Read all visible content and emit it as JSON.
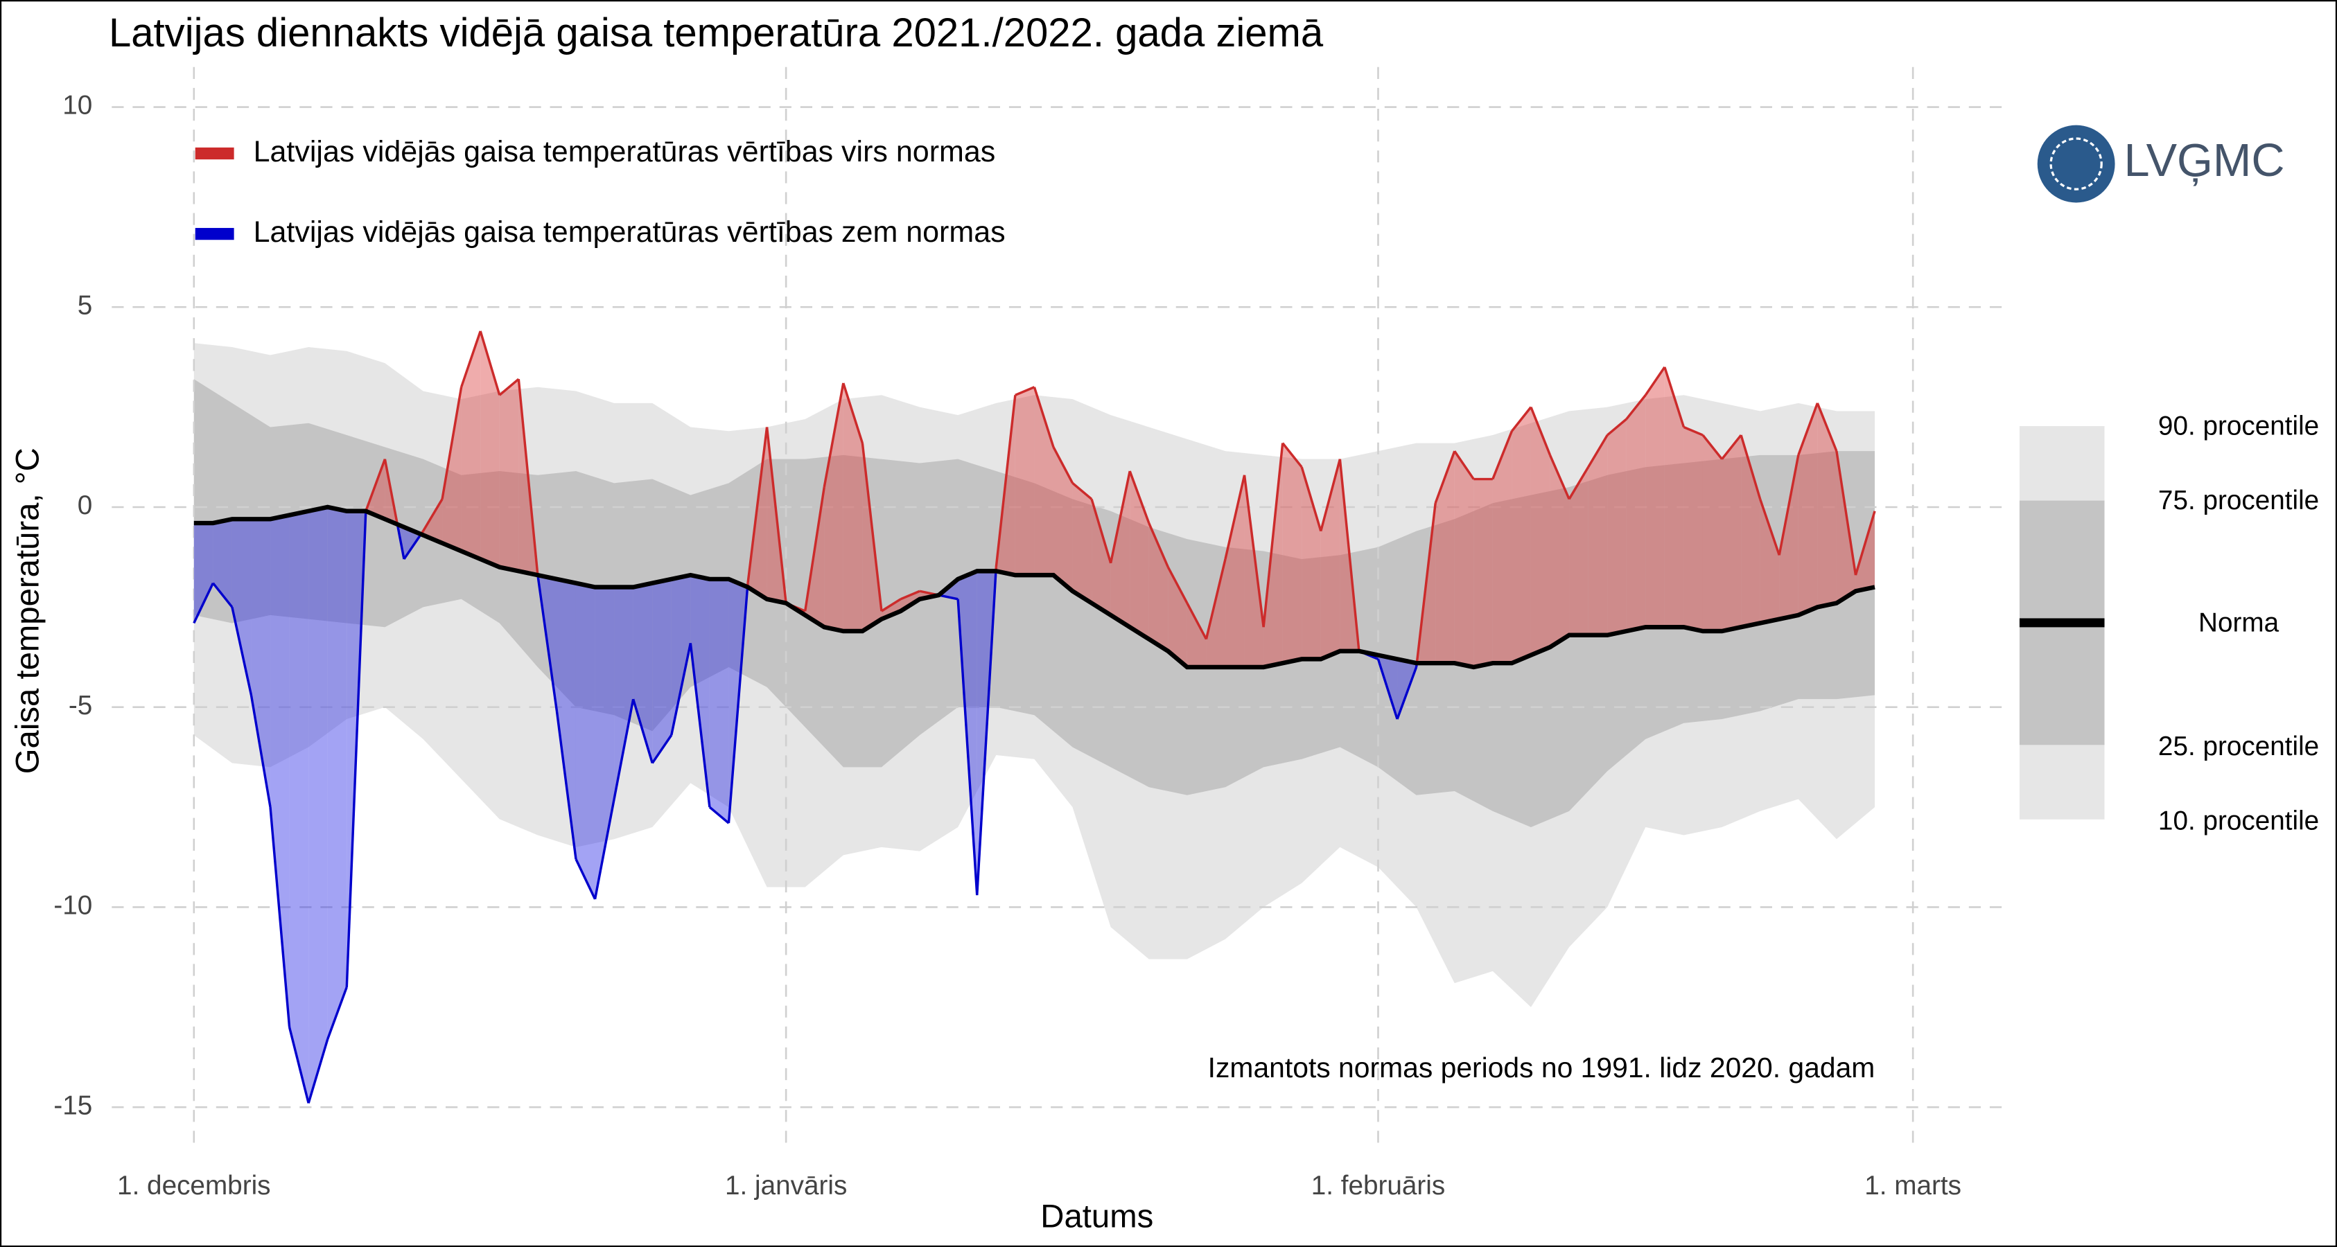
{
  "chart_data": {
    "type": "line",
    "title": "Latvijas diennakts vidējā gaisa temperatūra 2021./2022. gada ziemā",
    "ylabel": "Gaisa temperatūra, °C",
    "xlabel": "Datums",
    "annotation": "Izmantots normas periods no 1991. lidz 2020. gadam",
    "logo": "LVĢMC",
    "xlim": [
      -4.3,
      94.8
    ],
    "ylim": [
      -16,
      11
    ],
    "xticks": [
      {
        "value": 0,
        "label": "1. decembris"
      },
      {
        "value": 31,
        "label": "1. janvāris"
      },
      {
        "value": 62,
        "label": "1. februāris"
      },
      {
        "value": 90,
        "label": "1. marts"
      }
    ],
    "yticks": [
      -15,
      -10,
      -5,
      0,
      5,
      10
    ],
    "grid": true,
    "legend": [
      {
        "name": "Latvijas vidējās gaisa temperatūras vērtības virs normas",
        "color": "#cc2b2b"
      },
      {
        "name": "Latvijas vidējās gaisa temperatūras vērtības zem normas",
        "color": "#0000cc"
      }
    ],
    "x": [
      0,
      1,
      2,
      3,
      4,
      5,
      6,
      7,
      8,
      9,
      10,
      11,
      12,
      13,
      14,
      15,
      16,
      17,
      18,
      19,
      20,
      21,
      22,
      23,
      24,
      25,
      26,
      27,
      28,
      29,
      30,
      31,
      32,
      33,
      34,
      35,
      36,
      37,
      38,
      39,
      40,
      41,
      42,
      43,
      44,
      45,
      46,
      47,
      48,
      49,
      50,
      51,
      52,
      53,
      54,
      55,
      56,
      57,
      58,
      59,
      60,
      61,
      62,
      63,
      64,
      65,
      66,
      67,
      68,
      69,
      70,
      71,
      72,
      73,
      74,
      75,
      76,
      77,
      78,
      79,
      80,
      81,
      82,
      83,
      84,
      85,
      86,
      87,
      88
    ],
    "temperature": [
      -2.9,
      -1.9,
      -2.5,
      -4.7,
      -7.5,
      -13.0,
      -14.9,
      -13.3,
      -12.0,
      -0.1,
      1.2,
      -1.3,
      -0.6,
      0.2,
      3.0,
      4.4,
      2.8,
      3.2,
      -1.7,
      -5.1,
      -8.8,
      -9.8,
      -7.3,
      -4.8,
      -6.4,
      -5.7,
      -3.4,
      -7.5,
      -7.9,
      -1.9,
      2.0,
      -2.4,
      -2.6,
      0.5,
      3.1,
      1.6,
      -2.6,
      -2.3,
      -2.1,
      -2.2,
      -2.3,
      -9.7,
      -1.5,
      2.8,
      3.0,
      1.5,
      0.6,
      0.2,
      -1.4,
      0.9,
      -0.4,
      -1.5,
      -2.4,
      -3.3,
      -1.3,
      0.8,
      -3.0,
      1.6,
      1.0,
      -0.6,
      1.2,
      -3.6,
      -3.8,
      -5.3,
      -4.0,
      0.1,
      1.4,
      0.7,
      0.7,
      1.9,
      2.5,
      1.3,
      0.2,
      1.0,
      1.8,
      2.2,
      2.8,
      3.5,
      2.0,
      1.8,
      1.2,
      1.8,
      0.2,
      -1.2,
      1.3,
      2.6,
      1.4,
      -1.7,
      -0.1
    ],
    "norm": {
      "name": "Norma",
      "color": "#000000",
      "values": [
        -0.4,
        -0.4,
        -0.3,
        -0.3,
        -0.3,
        -0.2,
        -0.1,
        0.0,
        -0.1,
        -0.1,
        -0.3,
        -0.5,
        -0.7,
        -0.9,
        -1.1,
        -1.3,
        -1.5,
        -1.6,
        -1.7,
        -1.8,
        -1.9,
        -2.0,
        -2.0,
        -2.0,
        -1.9,
        -1.8,
        -1.7,
        -1.8,
        -1.8,
        -2.0,
        -2.3,
        -2.4,
        -2.7,
        -3.0,
        -3.1,
        -3.1,
        -2.8,
        -2.6,
        -2.3,
        -2.2,
        -1.8,
        -1.6,
        -1.6,
        -1.7,
        -1.7,
        -1.7,
        -2.1,
        -2.4,
        -2.7,
        -3.0,
        -3.3,
        -3.6,
        -4.0,
        -4.0,
        -4.0,
        -4.0,
        -4.0,
        -3.9,
        -3.8,
        -3.8,
        -3.6,
        -3.6,
        -3.7,
        -3.8,
        -3.9,
        -3.9,
        -3.9,
        -4.0,
        -3.9,
        -3.9,
        -3.7,
        -3.5,
        -3.2,
        -3.2,
        -3.2,
        -3.1,
        -3.0,
        -3.0,
        -3.0,
        -3.1,
        -3.1,
        -3.0,
        -2.9,
        -2.8,
        -2.7,
        -2.5,
        -2.4,
        -2.1,
        -2.0
      ]
    },
    "bands": {
      "x": [
        0,
        2,
        4,
        6,
        8,
        10,
        12,
        14,
        16,
        18,
        20,
        22,
        24,
        26,
        28,
        30,
        32,
        34,
        36,
        38,
        40,
        42,
        44,
        46,
        48,
        50,
        52,
        54,
        56,
        58,
        60,
        62,
        64,
        66,
        68,
        70,
        72,
        74,
        76,
        78,
        80,
        82,
        84,
        86,
        88
      ],
      "p90": [
        4.1,
        4.0,
        3.8,
        4.0,
        3.9,
        3.6,
        2.9,
        2.7,
        2.9,
        3.0,
        2.9,
        2.6,
        2.6,
        2.0,
        1.9,
        2.0,
        2.2,
        2.7,
        2.8,
        2.5,
        2.3,
        2.6,
        2.8,
        2.7,
        2.3,
        2.0,
        1.7,
        1.4,
        1.3,
        1.2,
        1.2,
        1.4,
        1.6,
        1.6,
        1.8,
        2.1,
        2.4,
        2.5,
        2.7,
        2.8,
        2.6,
        2.4,
        2.6,
        2.4,
        2.4
      ],
      "p75": [
        3.2,
        2.6,
        2.0,
        2.1,
        1.8,
        1.5,
        1.2,
        0.8,
        0.9,
        0.8,
        0.9,
        0.6,
        0.7,
        0.3,
        0.6,
        1.2,
        1.2,
        1.3,
        1.2,
        1.1,
        1.2,
        0.9,
        0.6,
        0.2,
        -0.1,
        -0.5,
        -0.8,
        -1.0,
        -1.1,
        -1.3,
        -1.2,
        -1.0,
        -0.6,
        -0.3,
        0.1,
        0.3,
        0.5,
        0.8,
        1.0,
        1.1,
        1.2,
        1.3,
        1.3,
        1.4,
        1.4
      ],
      "p25": [
        -2.7,
        -2.9,
        -2.7,
        -2.8,
        -2.9,
        -3.0,
        -2.5,
        -2.3,
        -2.9,
        -4.0,
        -5.0,
        -5.2,
        -5.6,
        -4.5,
        -4.0,
        -4.5,
        -5.5,
        -6.5,
        -6.5,
        -5.7,
        -5.0,
        -5.0,
        -5.2,
        -6.0,
        -6.5,
        -7.0,
        -7.2,
        -7.0,
        -6.5,
        -6.3,
        -6.0,
        -6.5,
        -7.2,
        -7.1,
        -7.6,
        -8.0,
        -7.6,
        -6.6,
        -5.8,
        -5.4,
        -5.3,
        -5.1,
        -4.8,
        -4.8,
        -4.7
      ],
      "p10": [
        -5.7,
        -6.4,
        -6.5,
        -6.0,
        -5.3,
        -5.0,
        -5.8,
        -6.8,
        -7.8,
        -8.2,
        -8.5,
        -8.3,
        -8.0,
        -6.9,
        -7.5,
        -9.5,
        -9.5,
        -8.7,
        -8.5,
        -8.6,
        -8.0,
        -6.2,
        -6.3,
        -7.5,
        -10.5,
        -11.3,
        -11.3,
        -10.8,
        -10.0,
        -9.4,
        -8.5,
        -9.0,
        -10.0,
        -11.9,
        -11.6,
        -12.5,
        -11.0,
        -10.0,
        -8.0,
        -8.2,
        -8.0,
        -7.6,
        -7.3,
        -8.3,
        -7.5
      ],
      "labels": [
        "90. procentile",
        "75. procentile",
        "25. procentile",
        "10. procentile"
      ],
      "colors": [
        "#e6e6e6",
        "#c4c4c4"
      ]
    }
  }
}
